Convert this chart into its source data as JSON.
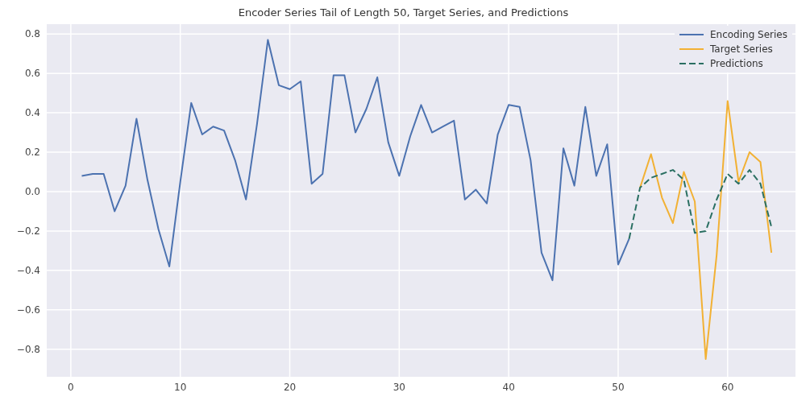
{
  "chart_data": {
    "type": "line",
    "title": "Encoder Series Tail of Length 50, Target Series, and Predictions",
    "xlim": [
      -2.2,
      66.2
    ],
    "xticks": [
      0,
      10,
      20,
      30,
      40,
      50,
      60
    ],
    "ylim": [
      -0.94,
      0.85
    ],
    "yticks": [
      {
        "value": -0.8,
        "label": "−0.8"
      },
      {
        "value": -0.6,
        "label": "−0.6"
      },
      {
        "value": -0.4,
        "label": "−0.4"
      },
      {
        "value": -0.2,
        "label": "−0.2"
      },
      {
        "value": 0,
        "label": "0.0"
      },
      {
        "value": 0.2,
        "label": "0.2"
      },
      {
        "value": 0.4,
        "label": "0.4"
      },
      {
        "value": 0.6,
        "label": "0.6"
      },
      {
        "value": 0.8,
        "label": "0.8"
      }
    ],
    "grid": true,
    "legend": "top right",
    "line_style": "solid",
    "marker": "none",
    "series": [
      {
        "name": "Encoding Series",
        "color": "#4c72b0",
        "x": [
          1,
          2,
          3,
          4,
          5,
          6,
          7,
          8,
          9,
          10,
          11,
          12,
          13,
          14,
          15,
          16,
          17,
          18,
          19,
          20,
          21,
          22,
          23,
          24,
          25,
          26,
          27,
          28,
          29,
          30,
          31,
          32,
          33,
          34,
          35,
          36,
          37,
          38,
          39,
          40,
          41,
          42,
          43,
          44,
          45,
          46,
          47,
          48,
          49,
          50,
          51
        ],
        "values": [
          0.08,
          0.09,
          0.09,
          -0.1,
          0.03,
          0.37,
          0.06,
          -0.19,
          -0.38,
          0.05,
          0.45,
          0.29,
          0.33,
          0.31,
          0.16,
          -0.04,
          0.34,
          0.77,
          0.54,
          0.52,
          0.56,
          0.04,
          0.09,
          0.59,
          0.59,
          0.3,
          0.42,
          0.58,
          0.25,
          0.08,
          0.28,
          0.44,
          0.3,
          0.33,
          0.36,
          -0.04,
          0.01,
          -0.06,
          0.29,
          0.44,
          0.43,
          0.16,
          -0.31,
          -0.45,
          0.22,
          0.03,
          0.43,
          0.08,
          0.24,
          -0.37,
          -0.24
        ]
      },
      {
        "name": "Target Series",
        "color": "#f2b134",
        "x": [
          52,
          53,
          54,
          55,
          56,
          57,
          58,
          59,
          60,
          61,
          62,
          63,
          64
        ],
        "values": [
          0.02,
          0.19,
          -0.03,
          -0.16,
          0.1,
          -0.05,
          -0.85,
          -0.32,
          0.46,
          0.05,
          0.2,
          0.15,
          -0.31
        ]
      },
      {
        "name": "Predictions",
        "color": "#2a6f62",
        "line_style": "dashed",
        "x": [
          51,
          52,
          53,
          54,
          55,
          56,
          57,
          58,
          59,
          60,
          61,
          62,
          63,
          64
        ],
        "values": [
          -0.24,
          0.02,
          0.07,
          0.09,
          0.11,
          0.06,
          -0.21,
          -0.2,
          -0.04,
          0.09,
          0.04,
          0.11,
          0.04,
          -0.18
        ]
      }
    ]
  }
}
